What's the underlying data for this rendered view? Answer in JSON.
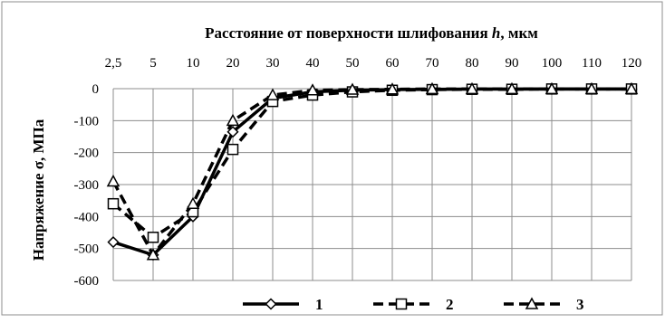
{
  "chart_data": {
    "type": "line",
    "title": "Расстояние от поверхности шлифования ",
    "title_var": "h",
    "title_unit": ", мкм",
    "ylabel": "Напряжение  σ, МПа",
    "categories": [
      "2,5",
      "5",
      "10",
      "20",
      "30",
      "40",
      "50",
      "60",
      "70",
      "80",
      "90",
      "100",
      "110",
      "120"
    ],
    "y_ticks": [
      "0",
      "-100",
      "-200",
      "-300",
      "-400",
      "-500",
      "-600"
    ],
    "ylim": [
      -600,
      0
    ],
    "x_axis_position": "top",
    "grid": true,
    "legend_position": "bottom-right",
    "series": [
      {
        "name": "1",
        "marker": "diamond",
        "dash": "solid",
        "values": [
          -480,
          -520,
          -400,
          -135,
          -30,
          -10,
          -5,
          -3,
          -2,
          -1,
          -1,
          -1,
          -1,
          -1
        ]
      },
      {
        "name": "2",
        "marker": "square",
        "dash": "dashed",
        "values": [
          -360,
          -465,
          -385,
          -190,
          -40,
          -20,
          -10,
          -5,
          -3,
          -2,
          -2,
          -1,
          -1,
          -1
        ]
      },
      {
        "name": "3",
        "marker": "triangle",
        "dash": "dashed",
        "values": [
          -290,
          -520,
          -360,
          -100,
          -20,
          -5,
          -3,
          -2,
          -1,
          -1,
          -1,
          -1,
          -1,
          -1
        ]
      }
    ]
  }
}
